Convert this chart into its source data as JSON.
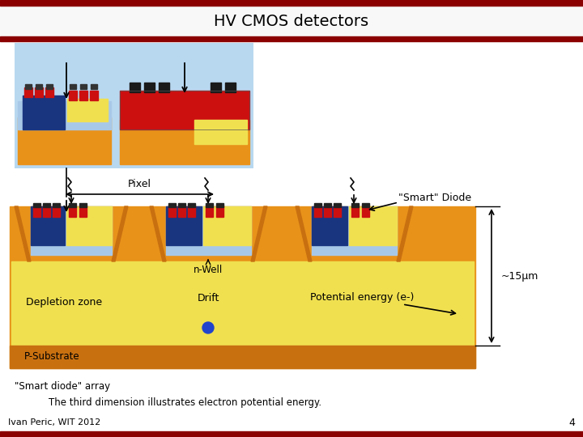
{
  "title": "HV CMOS detectors",
  "header_bg": "#8B0000",
  "white_bg": "#FFFFFF",
  "orange_color": "#E8921A",
  "yellow_color": "#F0E050",
  "light_blue": "#A8C8E8",
  "sky_blue": "#B8D8F0",
  "blue_color": "#1A3580",
  "red_color": "#CC1010",
  "dark_orange": "#C87010",
  "teal_blue": "#6090B0",
  "label_pixel": "Pixel",
  "label_smart_diode": "\"Smart\" Diode",
  "label_nwell": "n-Well",
  "label_drift": "Drift",
  "label_potential": "Potential energy (e-)",
  "label_15um": "~15µm",
  "label_depletion": "Depletion zone",
  "label_p_substrate": "P-Substrate",
  "label_smart_array": "\"Smart diode\" array",
  "label_third_dim": "The third dimension illustrates electron potential energy.",
  "label_footer": "Ivan Peric, WIT 2012",
  "label_page": "4"
}
